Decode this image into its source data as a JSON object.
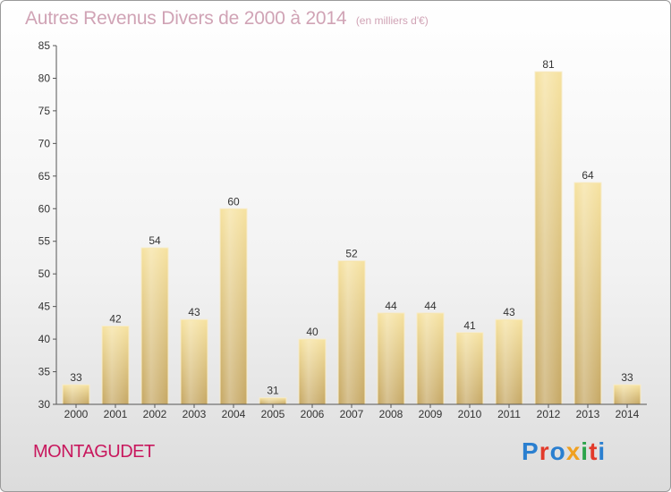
{
  "header": {
    "title": "Autres Revenus Divers de 2000 à 2014",
    "unit": "(en milliers d'€)"
  },
  "footer": {
    "commune": "MONTAGUDET",
    "logo_text": "Proxiti",
    "logo_colors": [
      "#2a7fd0",
      "#e23a2a",
      "#2a7fd0",
      "#f0a020",
      "#2aa34a",
      "#e23a2a",
      "#2a7fd0"
    ]
  },
  "chart_data": {
    "type": "bar",
    "title": "Autres Revenus Divers de 2000 à 2014",
    "subtitle": "(en milliers d'€)",
    "xlabel": "",
    "ylabel": "",
    "categories": [
      "2000",
      "2001",
      "2002",
      "2003",
      "2004",
      "2005",
      "2006",
      "2007",
      "2008",
      "2009",
      "2010",
      "2011",
      "2012",
      "2013",
      "2014"
    ],
    "values": [
      33,
      42,
      54,
      43,
      60,
      31,
      40,
      52,
      44,
      44,
      41,
      43,
      81,
      64,
      33
    ],
    "ylim": [
      30,
      85
    ],
    "yticks": [
      30,
      35,
      40,
      45,
      50,
      55,
      60,
      65,
      70,
      75,
      80,
      85
    ],
    "grid": false,
    "bar_color": "#e9cf8a",
    "data_labels": true
  }
}
